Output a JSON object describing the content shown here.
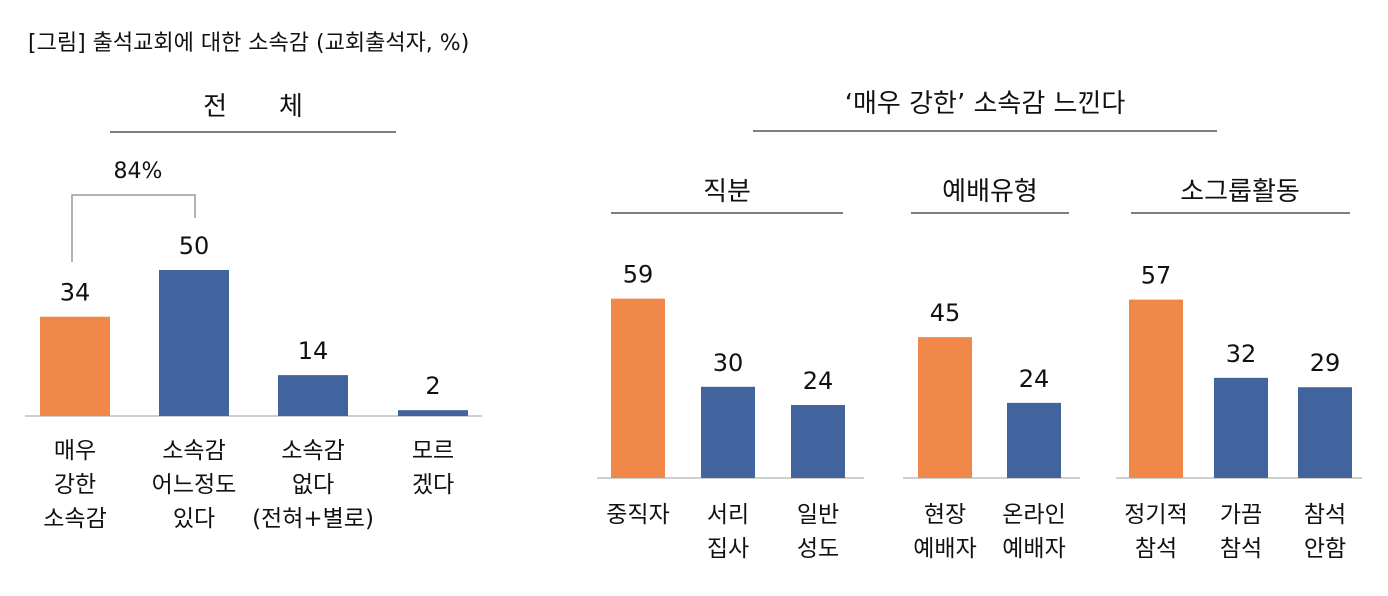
{
  "figure_title": "[그림] 출석교회에 대한 소속감 (교회출석자, %)",
  "colors": {
    "highlight": "#F0884A",
    "base": "#41649E",
    "rule": "#555555"
  },
  "overall": {
    "header": "전　　체",
    "bracket_label": "84%"
  },
  "right_header": "‘매우 강한’ 소속감 느낀다",
  "chart_data": [
    {
      "type": "bar",
      "title": "전 체",
      "categories": [
        [
          "매우",
          "강한",
          "소속감"
        ],
        [
          "소속감",
          "어느정도",
          "있다"
        ],
        [
          "소속감",
          "없다",
          "(전혀+별로)"
        ],
        [
          "모르",
          "겠다"
        ]
      ],
      "values": [
        34,
        50,
        14,
        2
      ],
      "highlight_index": 0,
      "annotation": "84%",
      "ylim": [
        0,
        60
      ]
    },
    {
      "type": "bar",
      "title": "직분",
      "categories": [
        [
          "중직자"
        ],
        [
          "서리",
          "집사"
        ],
        [
          "일반",
          "성도"
        ]
      ],
      "values": [
        59,
        30,
        24
      ],
      "highlight_index": 0,
      "ylim": [
        0,
        60
      ]
    },
    {
      "type": "bar",
      "title": "예배유형",
      "categories": [
        [
          "현장",
          "예배자"
        ],
        [
          "온라인",
          "예배자"
        ]
      ],
      "values": [
        45,
        24
      ],
      "highlight_index": 0,
      "ylim": [
        0,
        60
      ]
    },
    {
      "type": "bar",
      "title": "소그룹활동",
      "categories": [
        [
          "정기적",
          "참석"
        ],
        [
          "가끔",
          "참석"
        ],
        [
          "참석",
          "안함"
        ]
      ],
      "values": [
        57,
        32,
        29
      ],
      "highlight_index": 0,
      "ylim": [
        0,
        60
      ]
    }
  ]
}
